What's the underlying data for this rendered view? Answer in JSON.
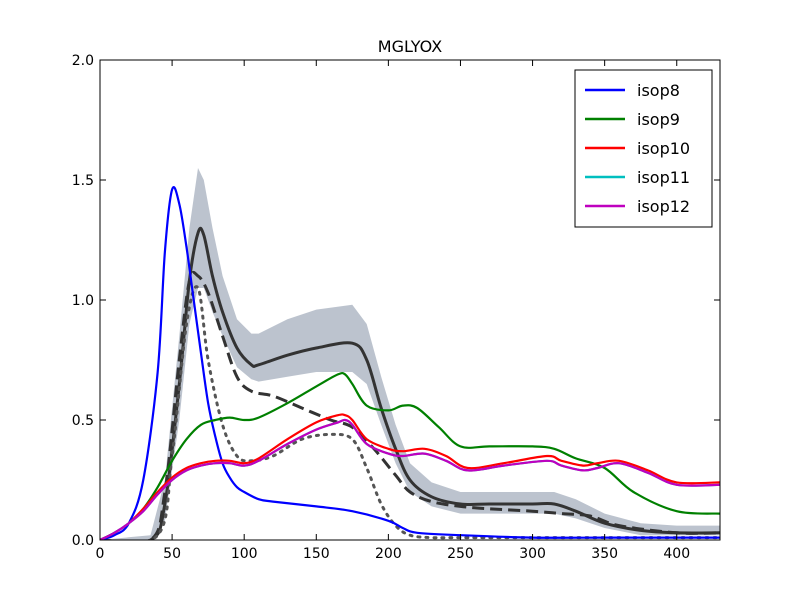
{
  "chart_data": {
    "type": "line",
    "title": "MGLYOX",
    "xlabel": "",
    "ylabel": "",
    "xlim": [
      0,
      430
    ],
    "ylim": [
      0,
      2.0
    ],
    "xticks": [
      0,
      50,
      100,
      150,
      200,
      250,
      300,
      350,
      400
    ],
    "yticks": [
      "0.0",
      "0.5",
      "1.0",
      "1.5",
      "2.0"
    ],
    "legend_position": "top-right",
    "grid": false,
    "series": [
      {
        "name": "isop8",
        "color": "#0000ff",
        "x": [
          0,
          10,
          20,
          30,
          40,
          45,
          50,
          55,
          60,
          65,
          70,
          75,
          80,
          85,
          90,
          95,
          100,
          110,
          120,
          150,
          175,
          200,
          210,
          220,
          250,
          300,
          350,
          400,
          430
        ],
        "y": [
          0,
          0.02,
          0.07,
          0.25,
          0.7,
          1.2,
          1.46,
          1.4,
          1.22,
          1.0,
          0.78,
          0.57,
          0.43,
          0.32,
          0.26,
          0.22,
          0.2,
          0.17,
          0.16,
          0.14,
          0.12,
          0.08,
          0.05,
          0.03,
          0.02,
          0.01,
          0.01,
          0.01,
          0.01
        ]
      },
      {
        "name": "isop9",
        "color": "#008000",
        "x": [
          0,
          10,
          20,
          30,
          40,
          50,
          60,
          70,
          80,
          90,
          100,
          110,
          130,
          150,
          165,
          170,
          175,
          185,
          200,
          210,
          220,
          235,
          250,
          270,
          300,
          315,
          330,
          350,
          370,
          400,
          430
        ],
        "y": [
          0,
          0.03,
          0.07,
          0.13,
          0.22,
          0.33,
          0.42,
          0.48,
          0.5,
          0.51,
          0.5,
          0.51,
          0.57,
          0.64,
          0.69,
          0.69,
          0.65,
          0.56,
          0.54,
          0.56,
          0.55,
          0.47,
          0.39,
          0.39,
          0.39,
          0.38,
          0.34,
          0.3,
          0.2,
          0.12,
          0.11
        ]
      },
      {
        "name": "isop10",
        "color": "#ff0000",
        "x": [
          0,
          10,
          20,
          30,
          40,
          50,
          60,
          70,
          80,
          90,
          100,
          110,
          130,
          150,
          165,
          170,
          175,
          185,
          200,
          210,
          225,
          240,
          255,
          280,
          310,
          320,
          335,
          345,
          360,
          380,
          400,
          430
        ],
        "y": [
          0,
          0.03,
          0.07,
          0.13,
          0.2,
          0.26,
          0.3,
          0.32,
          0.33,
          0.33,
          0.32,
          0.34,
          0.42,
          0.49,
          0.52,
          0.52,
          0.5,
          0.42,
          0.38,
          0.37,
          0.38,
          0.35,
          0.3,
          0.32,
          0.35,
          0.33,
          0.31,
          0.32,
          0.33,
          0.29,
          0.24,
          0.24
        ]
      },
      {
        "name": "isop11",
        "color": "#00bfbf",
        "x": [
          0,
          10,
          20,
          30,
          40,
          50,
          60,
          70,
          80,
          90,
          100,
          110,
          130,
          150,
          165,
          170,
          175,
          185,
          200,
          210,
          225,
          240,
          255,
          280,
          310,
          320,
          335,
          345,
          360,
          380,
          400,
          430
        ],
        "y": [
          0,
          0.03,
          0.07,
          0.12,
          0.19,
          0.25,
          0.29,
          0.31,
          0.32,
          0.32,
          0.31,
          0.33,
          0.4,
          0.46,
          0.49,
          0.5,
          0.48,
          0.4,
          0.36,
          0.35,
          0.36,
          0.33,
          0.29,
          0.31,
          0.33,
          0.31,
          0.29,
          0.3,
          0.32,
          0.28,
          0.23,
          0.23
        ]
      },
      {
        "name": "isop12",
        "color": "#bf00bf",
        "x": [
          0,
          10,
          20,
          30,
          40,
          50,
          60,
          70,
          80,
          90,
          100,
          110,
          130,
          150,
          165,
          170,
          175,
          185,
          200,
          210,
          225,
          240,
          255,
          280,
          310,
          320,
          335,
          345,
          360,
          380,
          400,
          430
        ],
        "y": [
          0,
          0.03,
          0.07,
          0.12,
          0.19,
          0.25,
          0.29,
          0.31,
          0.32,
          0.32,
          0.31,
          0.33,
          0.4,
          0.46,
          0.49,
          0.5,
          0.48,
          0.4,
          0.36,
          0.35,
          0.36,
          0.33,
          0.29,
          0.31,
          0.33,
          0.31,
          0.29,
          0.3,
          0.32,
          0.28,
          0.23,
          0.23
        ]
      }
    ],
    "reference_series": [
      {
        "style": "solid",
        "color": "#333333",
        "x": [
          0,
          35,
          45,
          55,
          62,
          68,
          72,
          78,
          85,
          95,
          105,
          110,
          130,
          150,
          175,
          185,
          195,
          205,
          215,
          230,
          250,
          270,
          300,
          315,
          330,
          350,
          375,
          400,
          430
        ],
        "y": [
          0,
          0,
          0.15,
          0.65,
          1.08,
          1.28,
          1.27,
          1.1,
          0.95,
          0.8,
          0.73,
          0.73,
          0.77,
          0.8,
          0.82,
          0.75,
          0.55,
          0.38,
          0.25,
          0.18,
          0.15,
          0.15,
          0.15,
          0.15,
          0.12,
          0.07,
          0.04,
          0.03,
          0.03
        ]
      },
      {
        "style": "dashed",
        "color": "#333333",
        "x": [
          0,
          35,
          45,
          55,
          62,
          68,
          75,
          85,
          95,
          105,
          120,
          140,
          160,
          175,
          190,
          205,
          215,
          230,
          250,
          270,
          300,
          320,
          340,
          360,
          400,
          430
        ],
        "y": [
          0,
          0,
          0.2,
          0.75,
          1.08,
          1.1,
          1.03,
          0.85,
          0.68,
          0.62,
          0.6,
          0.55,
          0.5,
          0.47,
          0.38,
          0.27,
          0.2,
          0.16,
          0.14,
          0.13,
          0.12,
          0.11,
          0.1,
          0.06,
          0.03,
          0.03
        ]
      },
      {
        "style": "dotted",
        "color": "#555555",
        "x": [
          0,
          40,
          50,
          60,
          68,
          75,
          85,
          95,
          105,
          120,
          140,
          160,
          175,
          185,
          195,
          205,
          215,
          230,
          250,
          300,
          350,
          400,
          430
        ],
        "y": [
          0,
          0.02,
          0.35,
          0.9,
          1.05,
          0.75,
          0.48,
          0.35,
          0.33,
          0.35,
          0.42,
          0.44,
          0.42,
          0.3,
          0.15,
          0.06,
          0.02,
          0.01,
          0.01,
          0.01,
          0.01,
          0.01,
          0.01
        ]
      }
    ],
    "uncertainty_band": {
      "color": "#b0b8c6",
      "x": [
        0,
        35,
        45,
        55,
        62,
        68,
        72,
        78,
        85,
        95,
        105,
        110,
        130,
        150,
        175,
        185,
        195,
        205,
        215,
        230,
        250,
        270,
        300,
        315,
        330,
        350,
        375,
        400,
        430
      ],
      "lower": [
        0,
        0,
        0.08,
        0.5,
        0.9,
        1.05,
        1.05,
        0.95,
        0.85,
        0.72,
        0.67,
        0.66,
        0.68,
        0.7,
        0.7,
        0.65,
        0.48,
        0.32,
        0.2,
        0.14,
        0.11,
        0.11,
        0.11,
        0.11,
        0.09,
        0.05,
        0.02,
        0.02,
        0.02
      ],
      "upper": [
        0,
        0.02,
        0.25,
        0.85,
        1.3,
        1.55,
        1.5,
        1.3,
        1.1,
        0.92,
        0.86,
        0.86,
        0.92,
        0.96,
        0.98,
        0.9,
        0.68,
        0.48,
        0.32,
        0.24,
        0.2,
        0.2,
        0.2,
        0.2,
        0.17,
        0.11,
        0.07,
        0.06,
        0.06
      ]
    }
  }
}
